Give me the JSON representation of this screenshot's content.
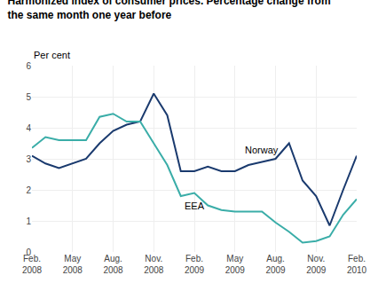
{
  "chart_data": {
    "type": "line",
    "title": "Harmonized index of consumer prices. Percentage change from\nthe same month one year before",
    "ylabel": "Per cent",
    "categories": [
      "Feb.\n2008",
      null,
      null,
      "May\n2008",
      null,
      null,
      "Aug.\n2008",
      null,
      null,
      "Nov.\n2008",
      null,
      null,
      "Feb.\n2009",
      null,
      null,
      "May\n2009",
      null,
      null,
      "Aug.\n2009",
      null,
      null,
      "Nov.\n2009",
      null,
      null,
      "Feb.\n2010"
    ],
    "series": [
      {
        "name": "Norway",
        "color": "#1a3a6e",
        "values": [
          3.1,
          2.85,
          2.7,
          2.85,
          3.0,
          3.5,
          3.9,
          4.1,
          4.2,
          5.1,
          4.4,
          2.6,
          2.6,
          2.75,
          2.6,
          2.6,
          2.8,
          2.9,
          3.0,
          3.5,
          2.3,
          1.8,
          0.85,
          2.0,
          3.1
        ]
      },
      {
        "name": "EEA",
        "color": "#3aada8",
        "values": [
          3.35,
          3.7,
          3.6,
          3.6,
          3.6,
          4.35,
          4.45,
          4.2,
          4.2,
          3.5,
          2.8,
          1.8,
          1.9,
          1.5,
          1.35,
          1.3,
          1.3,
          1.3,
          0.95,
          0.65,
          0.3,
          0.35,
          0.5,
          1.2,
          1.7
        ]
      }
    ],
    "ylim": [
      0,
      6
    ],
    "yticks": [
      0,
      1,
      2,
      3,
      4,
      5,
      6
    ],
    "grid": true
  }
}
